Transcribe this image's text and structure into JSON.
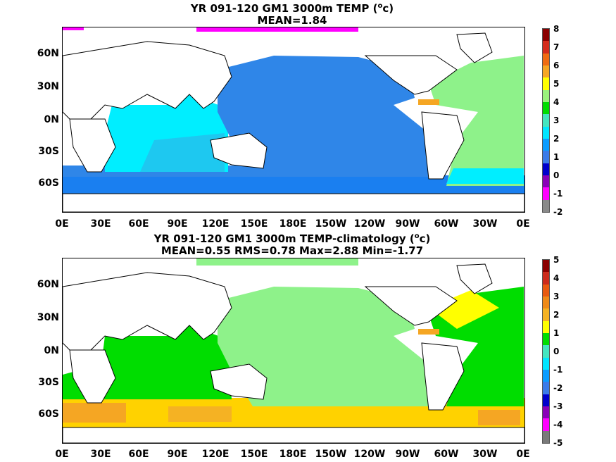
{
  "panels": [
    {
      "title_line1_pre": "YR 091-120 GM1 3000m TEMP (",
      "title_unit_sup": "o",
      "title_unit": "c",
      "title_line1_post": ")",
      "title_line2": "MEAN=1.84",
      "colorbar_labels": [
        "8",
        "7",
        "6",
        "5",
        "4",
        "3",
        "2",
        "1",
        "0",
        "-1",
        "-2"
      ],
      "colorbar_colors": [
        "#8b0000",
        "#d42c1c",
        "#ef6c12",
        "#f5a623",
        "#ffff00",
        "#9af27c",
        "#00dd00",
        "#44e5c0",
        "#00e5ff",
        "#0a9cff",
        "#3b7be8",
        "#0000cc",
        "#8a00b8",
        "#ff00ff",
        "#8a8a8a"
      ]
    },
    {
      "title_line1_pre": "YR 091-120 GM1 3000m TEMP-climatology (",
      "title_unit_sup": "o",
      "title_unit": "c",
      "title_line1_post": ")",
      "title_line2": "MEAN=0.55   RMS=0.78   Max=2.88   Min=-1.77",
      "colorbar_labels": [
        "5",
        "4",
        "3",
        "2",
        "1",
        "0",
        "-1",
        "-2",
        "-3",
        "-4",
        "-5"
      ],
      "colorbar_colors": [
        "#8b0000",
        "#cc2b1c",
        "#e85a10",
        "#ef8a18",
        "#f5b223",
        "#ffff00",
        "#00dd00",
        "#44e5c0",
        "#00e5ff",
        "#0a9cff",
        "#3b7be8",
        "#0000cc",
        "#8a00b8",
        "#ff00ff",
        "#7a7a7a"
      ]
    }
  ],
  "lat_labels": [
    "60N",
    "30N",
    "0N",
    "30S",
    "60S"
  ],
  "lon_labels": [
    "0E",
    "30E",
    "60E",
    "90E",
    "120E",
    "150E",
    "180E",
    "150W",
    "120W",
    "90W",
    "60W",
    "30W",
    "0E"
  ],
  "colors": {
    "pacific_top": "#2f86e8",
    "indian_top": "#00eeff",
    "atlantic_top": "#8ef28a",
    "southern_top": "#1a7ff0",
    "pacific_bottom": "#8ef28a",
    "indian_bottom": "#00dd00",
    "southern_bottom": "#ffd200",
    "warm_patch": "#f5a623"
  }
}
